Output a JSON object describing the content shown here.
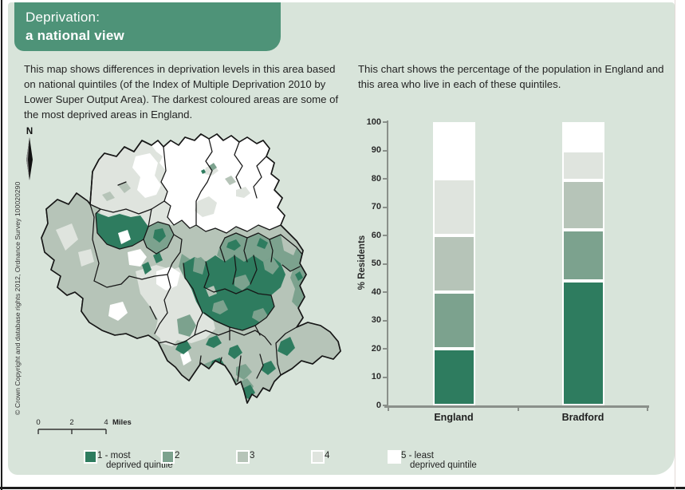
{
  "banner": {
    "title_line1": "Deprivation:",
    "title_line2": "a national view"
  },
  "intro": {
    "map_paragraph": "This map shows differences in deprivation levels in this area based on national quintiles (of the Index of Multiple Deprivation 2010 by Lower Super Output Area).  The darkest coloured areas are some of the most deprived areas in England.",
    "chart_paragraph": "This chart shows the percentage of the population in England and this area who live in each of these quintiles."
  },
  "map": {
    "north_label": "N",
    "copyright": "© Crown Copyright and database rights 2012, Ordnance Survey 100020290",
    "scale_labels": [
      "0",
      "2",
      "4"
    ],
    "scale_unit": "Miles"
  },
  "chart_data": {
    "type": "stacked-bar",
    "categories": [
      "England",
      "Bradford"
    ],
    "series": [
      {
        "name": "1 - most deprived quintile",
        "color": "#2e7c5f",
        "values": [
          20,
          44
        ]
      },
      {
        "name": "2",
        "color": "#7ca28e",
        "values": [
          20,
          18
        ]
      },
      {
        "name": "3",
        "color": "#b6c4b8",
        "values": [
          20,
          17.5
        ]
      },
      {
        "name": "4",
        "color": "#dfe4de",
        "values": [
          20,
          10.5
        ]
      },
      {
        "name": "5 - least deprived quintile",
        "color": "#ffffff",
        "values": [
          20,
          10
        ]
      }
    ],
    "ylabel": "% Residents",
    "ylim": [
      0,
      100
    ],
    "yticks": [
      0,
      10,
      20,
      30,
      40,
      50,
      60,
      70,
      80,
      90,
      100
    ],
    "grid": false,
    "legend_position": "bottom"
  },
  "legend": {
    "items": [
      {
        "line1": "1 - most",
        "line2": "deprived quintile",
        "color": "#2e7c5f"
      },
      {
        "line1": "2",
        "line2": "",
        "color": "#7ca28e"
      },
      {
        "line1": "3",
        "line2": "",
        "color": "#b6c4b8"
      },
      {
        "line1": "4",
        "line2": "",
        "color": "#dfe4de"
      },
      {
        "line1": "5 - least",
        "line2": "deprived quintile",
        "color": "#ffffff"
      }
    ]
  },
  "palette": {
    "page_background": "#ffffff",
    "content_background": "#d8e4da",
    "banner_green": "#4e9378",
    "quintile_1": "#2e7c5f",
    "quintile_2": "#7ca28e",
    "quintile_3": "#b6c4b8",
    "quintile_4": "#dfe4de",
    "quintile_5": "#ffffff",
    "axis_gray": "#8a908a",
    "boundary_black": "#161616"
  }
}
